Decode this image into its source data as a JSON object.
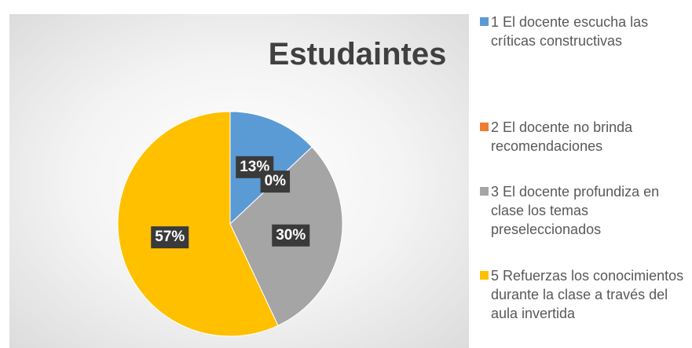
{
  "chart_data": {
    "type": "pie",
    "title": "Estudaintes",
    "categories": [
      "1 El docente escucha las críticas constructivas",
      "2 El docente no brinda recomendaciones",
      "3 El docente profundiza en clase los temas preseleccionados",
      "5 Refuerzas los conocimientos durante la clase a través del aula invertida"
    ],
    "values": [
      13,
      0,
      30,
      57
    ],
    "value_labels": [
      "13%",
      "0%",
      "30%",
      "57%"
    ],
    "colors": [
      "#5b9bd5",
      "#ed7d31",
      "#a5a5a5",
      "#ffc000"
    ],
    "legend": "right"
  }
}
